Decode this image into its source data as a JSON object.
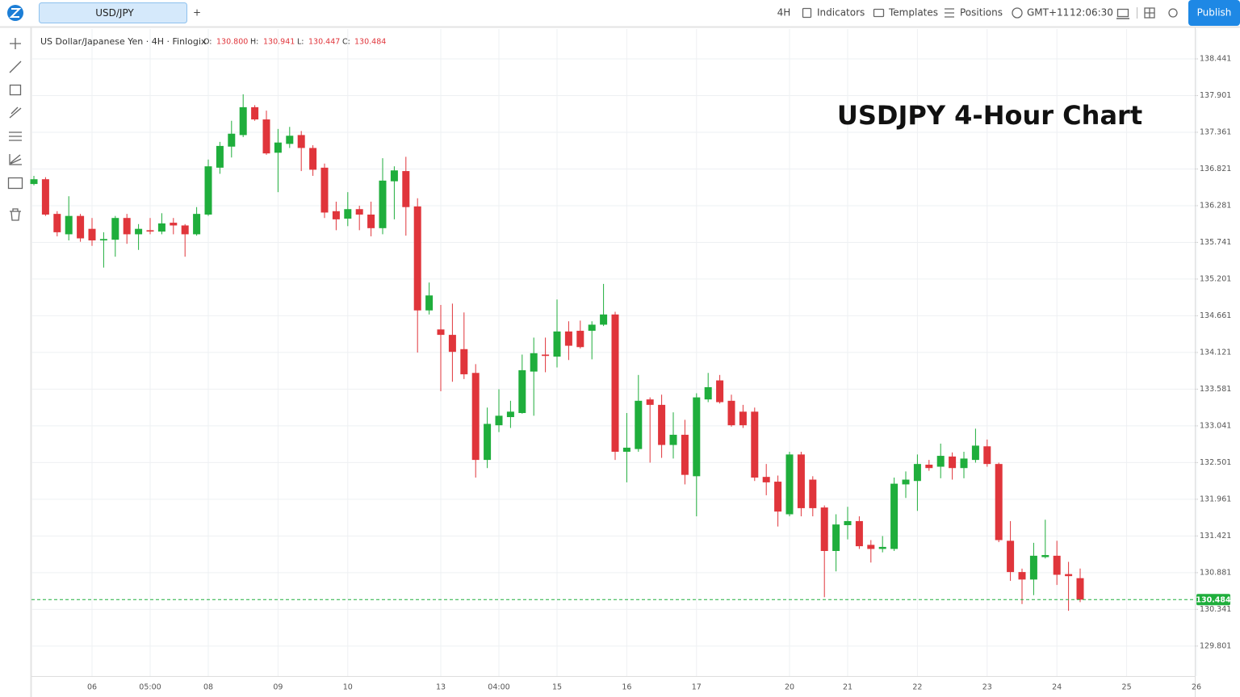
{
  "toolbar": {
    "tab": "USD/JPY",
    "add": "+",
    "interval": "4H",
    "indicators": "Indicators",
    "templates": "Templates",
    "positions": "Positions",
    "timezone": "GMT+11",
    "clock": "12:06:30",
    "publish": "Publish"
  },
  "chart_data": {
    "type": "candlestick",
    "symbol": "US Dollar/Japanese Yen · 4H · Finlogix",
    "legend": [
      {
        "key": "O:",
        "value": "130.800"
      },
      {
        "key": "H:",
        "value": "130.941"
      },
      {
        "key": "L:",
        "value": "130.447"
      },
      {
        "key": "C:",
        "value": "130.484"
      }
    ],
    "title": "USDJPY 4-Hour Chart",
    "categories": [
      null,
      null,
      null,
      null,
      null,
      "06",
      null,
      null,
      null,
      null,
      "05:00",
      null,
      null,
      null,
      null,
      "08",
      null,
      null,
      null,
      null,
      null,
      "09",
      null,
      null,
      null,
      null,
      null,
      "10",
      null,
      null,
      null,
      null,
      null,
      null,
      null,
      "13",
      null,
      null,
      null,
      null,
      "04:00",
      null,
      null,
      null,
      null,
      "15",
      null,
      null,
      null,
      null,
      null,
      "16",
      null,
      null,
      null,
      null,
      null,
      "17",
      null,
      null,
      null,
      null,
      null,
      null,
      null,
      "20",
      null,
      null,
      null,
      null,
      "21",
      null,
      null,
      null,
      null,
      null,
      "22",
      null,
      null,
      null,
      null,
      null,
      "23",
      null,
      null,
      null,
      null,
      null,
      "24",
      null,
      null,
      null,
      null,
      null,
      "25",
      null,
      null,
      null,
      null,
      null,
      "26"
    ],
    "open": [
      136.6,
      136.67,
      136.16,
      135.86,
      136.13,
      135.94,
      135.77,
      135.78,
      136.1,
      135.86,
      135.92,
      135.9,
      136.03,
      135.99,
      135.86,
      136.15,
      136.84,
      137.15,
      137.32,
      137.73,
      137.55,
      137.06,
      137.19,
      137.32,
      137.13,
      136.84,
      136.2,
      136.09,
      136.23,
      136.15,
      135.95,
      136.64,
      136.79,
      136.27,
      134.74,
      134.46,
      134.38,
      134.17,
      133.82,
      132.54,
      133.05,
      133.17,
      133.23,
      133.84,
      134.09,
      134.06,
      134.43,
      134.44,
      134.44,
      134.53,
      134.68,
      132.66,
      132.7,
      133.43,
      133.35,
      132.76,
      132.91,
      132.3,
      133.43,
      133.71,
      133.41,
      133.25,
      133.25,
      132.29,
      132.22,
      131.74,
      132.62,
      132.25,
      131.84,
      131.2,
      131.58,
      131.64,
      131.29,
      131.23,
      131.23,
      132.18,
      132.23,
      132.47,
      132.44,
      132.59,
      132.42,
      132.54,
      132.74,
      132.48,
      131.35,
      130.89,
      130.78,
      131.11,
      131.13,
      130.86,
      130.8,
      null,
      null,
      null,
      null,
      null,
      null,
      null,
      null,
      null,
      null
    ],
    "high": [
      136.72,
      136.7,
      136.2,
      136.42,
      136.16,
      136.1,
      135.89,
      136.13,
      136.16,
      136.01,
      136.1,
      136.17,
      136.1,
      136.01,
      136.26,
      136.96,
      137.22,
      137.53,
      137.92,
      137.76,
      137.68,
      137.41,
      137.44,
      137.38,
      137.17,
      136.9,
      136.34,
      136.48,
      136.28,
      136.34,
      136.98,
      136.86,
      137.0,
      136.39,
      135.15,
      134.82,
      134.84,
      134.71,
      133.95,
      133.31,
      133.58,
      133.41,
      134.09,
      134.34,
      134.34,
      134.9,
      134.58,
      134.59,
      134.58,
      135.13,
      134.72,
      133.23,
      133.79,
      133.46,
      133.5,
      133.24,
      133.13,
      133.52,
      133.82,
      133.79,
      133.5,
      133.35,
      133.31,
      132.48,
      132.31,
      132.66,
      132.66,
      132.3,
      131.87,
      131.74,
      131.85,
      131.71,
      131.36,
      131.42,
      132.28,
      132.37,
      132.62,
      132.54,
      132.78,
      132.65,
      132.66,
      133.0,
      132.84,
      132.5,
      131.64,
      130.94,
      131.32,
      131.66,
      131.35,
      131.04,
      130.941,
      null,
      null,
      null,
      null,
      null,
      null,
      null,
      null,
      null,
      null
    ],
    "low": [
      136.58,
      136.13,
      135.83,
      135.77,
      135.75,
      135.69,
      135.37,
      135.53,
      135.72,
      135.63,
      135.86,
      135.86,
      135.86,
      135.53,
      135.84,
      136.13,
      136.75,
      136.99,
      137.29,
      137.53,
      137.03,
      136.48,
      137.13,
      136.79,
      136.72,
      136.1,
      135.92,
      135.98,
      135.92,
      135.83,
      135.86,
      136.08,
      135.84,
      134.12,
      134.68,
      133.55,
      133.69,
      133.73,
      132.28,
      132.42,
      132.95,
      133.01,
      133.22,
      133.19,
      133.83,
      133.9,
      134.01,
      134.18,
      134.02,
      134.51,
      132.54,
      132.21,
      132.66,
      132.5,
      132.57,
      132.56,
      132.18,
      131.71,
      133.39,
      133.37,
      133.03,
      133.01,
      132.23,
      132.02,
      131.56,
      131.71,
      131.71,
      131.71,
      130.52,
      130.9,
      131.37,
      131.23,
      131.03,
      131.18,
      131.2,
      131.98,
      131.79,
      132.38,
      132.27,
      132.25,
      132.27,
      132.5,
      132.44,
      131.33,
      130.76,
      130.42,
      130.55,
      131.09,
      130.7,
      130.32,
      130.447,
      null,
      null,
      null,
      null,
      null,
      null,
      null,
      null,
      null,
      null
    ],
    "close": [
      136.67,
      136.15,
      135.89,
      136.13,
      135.8,
      135.77,
      135.79,
      136.1,
      135.86,
      135.94,
      135.9,
      136.02,
      135.99,
      135.86,
      136.16,
      136.86,
      137.16,
      137.34,
      137.73,
      137.55,
      137.05,
      137.21,
      137.31,
      137.13,
      136.81,
      136.18,
      136.08,
      136.23,
      136.15,
      135.95,
      136.65,
      136.8,
      136.26,
      134.74,
      134.96,
      134.38,
      134.13,
      133.8,
      132.54,
      133.07,
      133.19,
      133.25,
      133.86,
      134.11,
      134.07,
      134.43,
      134.22,
      134.2,
      134.53,
      134.68,
      132.66,
      132.72,
      133.41,
      133.35,
      132.76,
      132.91,
      132.32,
      133.46,
      133.61,
      133.39,
      133.05,
      133.05,
      132.28,
      132.21,
      131.78,
      132.62,
      131.83,
      131.83,
      131.2,
      131.59,
      131.64,
      131.27,
      131.23,
      131.26,
      132.19,
      132.25,
      132.48,
      132.42,
      132.6,
      132.42,
      132.56,
      132.75,
      132.48,
      131.36,
      130.89,
      130.78,
      131.13,
      131.14,
      130.85,
      130.83,
      130.484,
      null,
      null,
      null,
      null,
      null,
      null,
      null,
      null,
      null,
      null
    ],
    "up_color": "#1fae3c",
    "down_color": "#e0353b",
    "ylim": [
      129.36,
      138.88
    ],
    "yticks": [
      138.441,
      137.901,
      137.361,
      136.821,
      136.281,
      135.741,
      135.201,
      134.661,
      134.121,
      133.581,
      133.041,
      132.501,
      131.961,
      131.421,
      130.881,
      130.341,
      129.801
    ],
    "grid": true,
    "last_price": 130.484
  }
}
